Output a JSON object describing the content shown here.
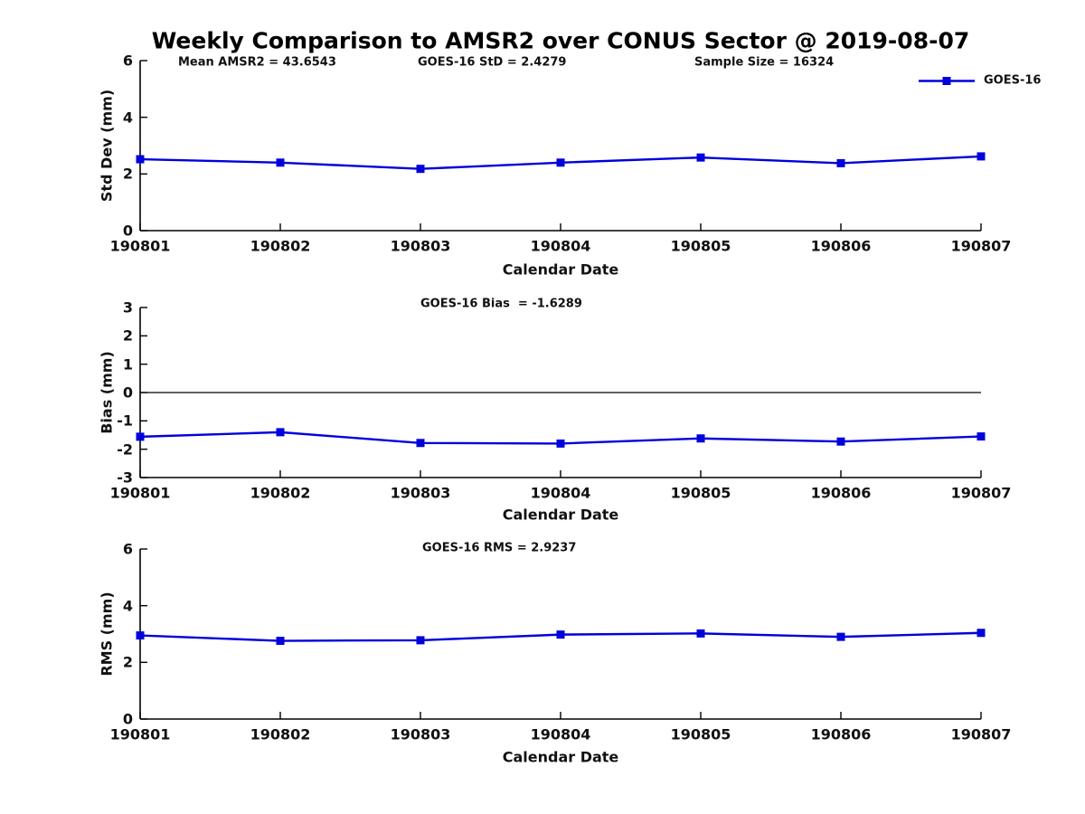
{
  "title": "Weekly Comparison to AMSR2 over CONUS Sector @ 2019-08-07",
  "colors": {
    "line": "#0000DD",
    "axis": "#000000",
    "text": "#111111"
  },
  "legend": {
    "label": "GOES-16",
    "position": "top-right"
  },
  "chart_data": [
    {
      "type": "line",
      "categories": [
        "190801",
        "190802",
        "190803",
        "190804",
        "190805",
        "190806",
        "190807"
      ],
      "series": [
        {
          "name": "GOES-16",
          "values": [
            2.52,
            2.4,
            2.18,
            2.4,
            2.58,
            2.38,
            2.62
          ]
        }
      ],
      "xlabel": "Calendar Date",
      "ylabel": "Std Dev (mm)",
      "ylim": [
        0,
        6
      ],
      "yticks": [
        0,
        2,
        4,
        6
      ],
      "grid": false,
      "zero_line": false,
      "legend_position": "top-right",
      "annotations": [
        "Mean AMSR2 = 43.6543",
        "GOES-16 StD = 2.4279",
        "Sample Size = 16324"
      ]
    },
    {
      "type": "line",
      "categories": [
        "190801",
        "190802",
        "190803",
        "190804",
        "190805",
        "190806",
        "190807"
      ],
      "series": [
        {
          "name": "GOES-16",
          "values": [
            -1.56,
            -1.4,
            -1.78,
            -1.8,
            -1.62,
            -1.73,
            -1.55
          ]
        }
      ],
      "xlabel": "Calendar Date",
      "ylabel": "Bias (mm)",
      "ylim": [
        -3,
        3
      ],
      "yticks": [
        -3,
        -2,
        -1,
        0,
        1,
        2,
        3
      ],
      "grid": false,
      "zero_line": true,
      "legend_position": "none",
      "annotations": [
        "GOES-16 Bias  = -1.6289"
      ]
    },
    {
      "type": "line",
      "categories": [
        "190801",
        "190802",
        "190803",
        "190804",
        "190805",
        "190806",
        "190807"
      ],
      "series": [
        {
          "name": "GOES-16",
          "values": [
            2.95,
            2.76,
            2.78,
            2.98,
            3.02,
            2.9,
            3.04
          ]
        }
      ],
      "xlabel": "Calendar Date",
      "ylabel": "RMS (mm)",
      "ylim": [
        0,
        6
      ],
      "yticks": [
        0,
        2,
        4,
        6
      ],
      "grid": false,
      "zero_line": false,
      "legend_position": "none",
      "annotations": [
        "GOES-16 RMS = 2.9237"
      ]
    }
  ]
}
